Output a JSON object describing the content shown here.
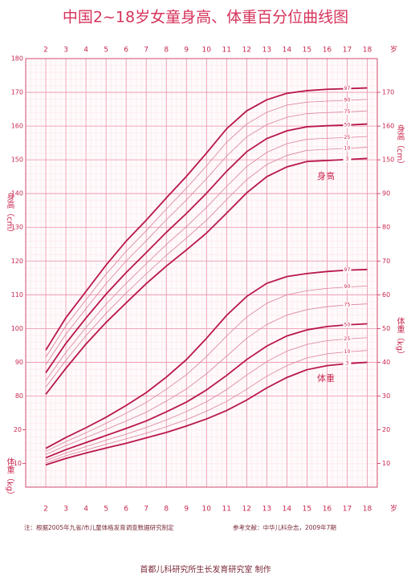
{
  "chart_data": {
    "type": "line",
    "title": "中国2~18岁女童身高、体重百分位曲线图",
    "x": [
      2,
      3,
      4,
      5,
      6,
      7,
      8,
      9,
      10,
      11,
      12,
      13,
      14,
      15,
      16,
      17,
      18
    ],
    "xlim": [
      1,
      18.5
    ],
    "xticks": [
      2,
      3,
      4,
      5,
      6,
      7,
      8,
      9,
      10,
      11,
      12,
      13,
      14,
      15,
      16,
      17,
      18
    ],
    "x_unit": "岁",
    "ylabel": "身高（cm）",
    "y2label": "体重（kg）",
    "ylim": [
      53,
      180
    ],
    "yticks": [
      80,
      90,
      100,
      110,
      120,
      130,
      140,
      150,
      160,
      170,
      180
    ],
    "yticks_right": [
      150,
      160,
      170
    ],
    "y2lim": [
      3,
      130
    ],
    "y2ticks": [
      10,
      20,
      30,
      40,
      50,
      60,
      70,
      80,
      90
    ],
    "y2ticks_left": [
      10,
      20
    ],
    "height_label": "身高",
    "weight_label": "体重",
    "grid": true,
    "series": [
      {
        "name": "97",
        "axis": "y",
        "bold": true,
        "color": "#b8174c",
        "values": [
          93.6,
          103.2,
          111.0,
          118.8,
          125.9,
          132.1,
          138.7,
          145.1,
          152.0,
          159.2,
          164.5,
          167.8,
          169.7,
          170.5,
          170.9,
          171.1,
          171.3
        ]
      },
      {
        "name": "90",
        "axis": "y",
        "bold": false,
        "color": "#d9819b",
        "values": [
          91.5,
          100.8,
          108.5,
          116.1,
          122.9,
          129.0,
          135.4,
          141.6,
          148.2,
          155.2,
          160.6,
          164.1,
          166.2,
          167.1,
          167.4,
          167.6,
          167.9
        ]
      },
      {
        "name": "75",
        "axis": "y",
        "bold": false,
        "color": "#d9819b",
        "values": [
          89.3,
          98.3,
          105.9,
          113.3,
          120.0,
          126.0,
          132.2,
          138.1,
          144.4,
          151.1,
          156.8,
          160.4,
          162.6,
          163.7,
          164.0,
          164.2,
          164.5
        ]
      },
      {
        "name": "50",
        "axis": "y",
        "bold": true,
        "color": "#b8174c",
        "values": [
          86.9,
          95.6,
          103.1,
          110.2,
          116.6,
          122.5,
          128.5,
          134.1,
          140.1,
          146.6,
          152.4,
          156.3,
          158.6,
          159.8,
          160.1,
          160.3,
          160.6
        ]
      },
      {
        "name": "25",
        "axis": "y",
        "bold": false,
        "color": "#d9819b",
        "values": [
          84.6,
          92.9,
          100.3,
          107.2,
          113.4,
          119.2,
          124.9,
          130.2,
          135.9,
          142.1,
          148.0,
          152.2,
          154.8,
          156.1,
          156.4,
          156.6,
          156.9
        ]
      },
      {
        "name": "10",
        "axis": "y",
        "bold": false,
        "color": "#d9819b",
        "values": [
          82.6,
          90.6,
          97.9,
          104.5,
          110.5,
          116.2,
          121.7,
          126.8,
          132.1,
          138.2,
          144.1,
          148.6,
          151.3,
          152.8,
          153.1,
          153.4,
          153.7
        ]
      },
      {
        "name": "3",
        "axis": "y",
        "bold": true,
        "color": "#b8174c",
        "values": [
          80.5,
          88.2,
          95.4,
          101.8,
          107.6,
          113.3,
          118.5,
          123.3,
          128.3,
          134.2,
          140.2,
          145.0,
          147.9,
          149.5,
          149.8,
          150.1,
          150.4
        ]
      },
      {
        "name": "97",
        "axis": "y2",
        "bold": true,
        "color": "#b8174c",
        "values": [
          14.5,
          17.7,
          20.6,
          23.7,
          27.2,
          31.0,
          35.6,
          40.8,
          47.1,
          53.9,
          59.5,
          63.4,
          65.4,
          66.3,
          66.9,
          67.3,
          67.5
        ]
      },
      {
        "name": "90",
        "axis": "y2",
        "bold": false,
        "color": "#d9819b",
        "values": [
          13.6,
          16.5,
          19.1,
          21.9,
          24.9,
          28.1,
          32.0,
          36.3,
          41.7,
          47.8,
          53.4,
          57.5,
          60.0,
          61.2,
          61.9,
          62.3,
          62.6
        ]
      },
      {
        "name": "75",
        "axis": "y2",
        "bold": false,
        "color": "#d9819b",
        "values": [
          12.7,
          15.3,
          17.7,
          20.1,
          22.6,
          25.2,
          28.5,
          32.1,
          36.6,
          41.8,
          47.1,
          51.2,
          54.0,
          55.6,
          56.5,
          57.0,
          57.3
        ]
      },
      {
        "name": "50",
        "axis": "y2",
        "bold": true,
        "color": "#b8174c",
        "values": [
          11.7,
          14.1,
          16.2,
          18.3,
          20.4,
          22.6,
          25.3,
          28.2,
          31.8,
          36.1,
          40.8,
          44.8,
          47.8,
          49.6,
          50.6,
          51.1,
          51.4
        ]
      },
      {
        "name": "25",
        "axis": "y2",
        "bold": false,
        "color": "#d9819b",
        "values": [
          10.9,
          13.1,
          15.0,
          16.9,
          18.7,
          20.7,
          22.9,
          25.4,
          28.3,
          31.9,
          36.2,
          40.2,
          43.3,
          45.3,
          46.4,
          46.9,
          47.3
        ]
      },
      {
        "name": "10",
        "axis": "y2",
        "bold": false,
        "color": "#d9819b",
        "values": [
          10.2,
          12.3,
          14.0,
          15.7,
          17.3,
          19.0,
          20.9,
          23.0,
          25.5,
          28.4,
          32.0,
          35.9,
          39.0,
          41.3,
          42.5,
          43.1,
          43.5
        ]
      },
      {
        "name": "3",
        "axis": "y2",
        "bold": true,
        "color": "#b8174c",
        "values": [
          9.6,
          11.5,
          13.1,
          14.6,
          16.0,
          17.6,
          19.2,
          21.1,
          23.2,
          25.7,
          28.8,
          32.4,
          35.5,
          37.8,
          39.0,
          39.6,
          40.0
        ]
      }
    ],
    "note": "注：根据2005年九省/市儿童体格发育调查数据研究制定",
    "reference": "参考文献：中华儿科杂志，2009年7期",
    "credit": "首都儿科研究所生长发育研究室 制作"
  }
}
